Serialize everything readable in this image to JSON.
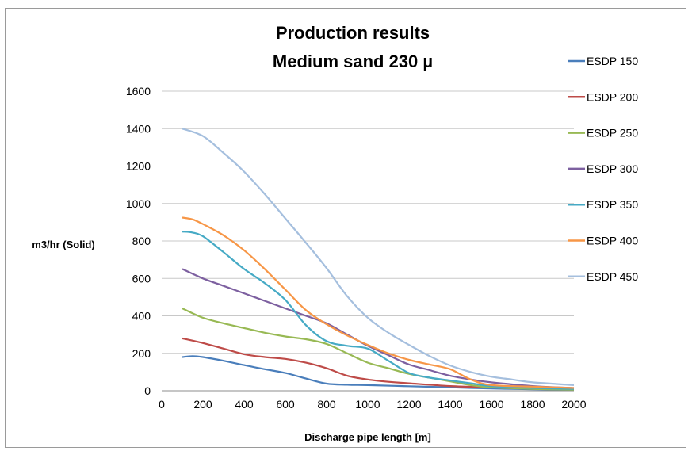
{
  "chart_data": {
    "type": "line",
    "title_lines": [
      "Production results",
      "Medium sand 230 µ"
    ],
    "xlabel": "Discharge pipe length [m]",
    "ylabel": "m3/hr (Solid)",
    "xlim": [
      0,
      2000
    ],
    "ylim": [
      0,
      1600
    ],
    "x_ticks": [
      0,
      200,
      400,
      600,
      800,
      1000,
      1200,
      1400,
      1600,
      1800,
      2000
    ],
    "y_ticks": [
      0,
      200,
      400,
      600,
      800,
      1000,
      1200,
      1400,
      1600
    ],
    "grid": "horizontal",
    "legend_position": "right",
    "series": [
      {
        "name": "ESDP 150",
        "color": "#4a7ebb",
        "x": [
          100,
          150,
          200,
          300,
          400,
          500,
          600,
          700,
          800,
          900,
          1000,
          1200,
          1400,
          1600,
          1800,
          2000
        ],
        "y": [
          180,
          185,
          180,
          160,
          137,
          115,
          95,
          65,
          38,
          32,
          30,
          24,
          18,
          12,
          8,
          5
        ]
      },
      {
        "name": "ESDP 200",
        "color": "#be4b48",
        "x": [
          100,
          200,
          300,
          400,
          500,
          600,
          700,
          800,
          900,
          1000,
          1100,
          1200,
          1400,
          1600,
          1800,
          2000
        ],
        "y": [
          280,
          255,
          225,
          195,
          180,
          170,
          150,
          120,
          80,
          60,
          48,
          40,
          25,
          18,
          12,
          8
        ]
      },
      {
        "name": "ESDP 250",
        "color": "#98b954",
        "x": [
          100,
          200,
          300,
          400,
          500,
          600,
          700,
          800,
          900,
          1000,
          1100,
          1200,
          1300,
          1400,
          1500,
          1600,
          1800,
          2000
        ],
        "y": [
          440,
          390,
          360,
          335,
          310,
          290,
          275,
          250,
          200,
          150,
          120,
          90,
          70,
          50,
          30,
          18,
          10,
          6
        ]
      },
      {
        "name": "ESDP 300",
        "color": "#7d60a0",
        "x": [
          100,
          200,
          300,
          400,
          500,
          600,
          700,
          800,
          900,
          1000,
          1100,
          1200,
          1300,
          1400,
          1500,
          1600,
          1800,
          2000
        ],
        "y": [
          650,
          600,
          560,
          520,
          480,
          440,
          400,
          360,
          300,
          240,
          190,
          140,
          110,
          80,
          60,
          45,
          25,
          15
        ]
      },
      {
        "name": "ESDP 350",
        "color": "#46aac5",
        "x": [
          100,
          150,
          200,
          300,
          400,
          500,
          600,
          700,
          800,
          900,
          1000,
          1100,
          1200,
          1300,
          1400,
          1500,
          1600,
          1800,
          2000
        ],
        "y": [
          850,
          845,
          825,
          740,
          650,
          575,
          485,
          350,
          265,
          240,
          225,
          160,
          95,
          70,
          55,
          40,
          25,
          15,
          10
        ]
      },
      {
        "name": "ESDP 400",
        "color": "#f79646",
        "x": [
          100,
          150,
          200,
          300,
          400,
          500,
          600,
          700,
          800,
          900,
          1000,
          1100,
          1200,
          1300,
          1400,
          1500,
          1600,
          1800,
          2000
        ],
        "y": [
          925,
          915,
          890,
          830,
          750,
          650,
          540,
          430,
          355,
          295,
          245,
          200,
          165,
          140,
          115,
          60,
          30,
          22,
          15
        ]
      },
      {
        "name": "ESDP 450",
        "color": "#a5bfde",
        "x": [
          100,
          200,
          300,
          400,
          500,
          600,
          700,
          800,
          900,
          1000,
          1100,
          1200,
          1300,
          1400,
          1500,
          1600,
          1700,
          1800,
          2000
        ],
        "y": [
          1400,
          1360,
          1270,
          1170,
          1050,
          920,
          790,
          655,
          505,
          390,
          310,
          245,
          185,
          135,
          100,
          75,
          60,
          45,
          30
        ]
      }
    ]
  }
}
